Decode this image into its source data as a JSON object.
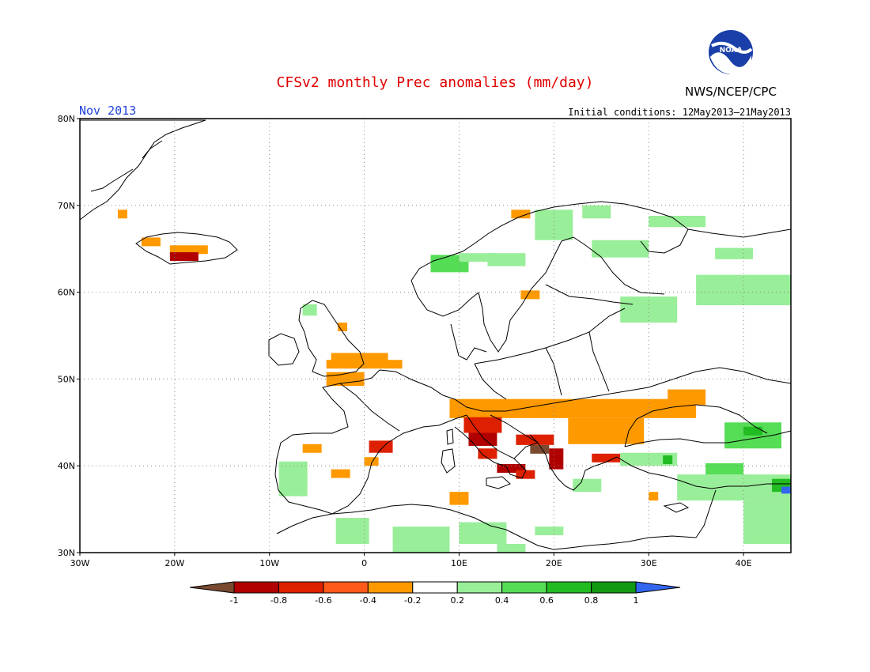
{
  "title": "CFSv2 monthly Prec anomalies (mm/day)",
  "month": "Nov 2013",
  "initial_conditions": "Initial conditions: 12May2013–21May2013",
  "organization": "NWS/NCEP/CPC",
  "logo_text": "NOAA",
  "colors": {
    "title": "#e00000",
    "month": "#2244dd",
    "bins": [
      "#7a4a30",
      "#b00000",
      "#dd2000",
      "#ff5a1a",
      "#ff9900",
      "#ffffff",
      "#99ee99",
      "#55dd55",
      "#22bb22",
      "#119911",
      "#3366ee"
    ]
  },
  "map": {
    "lon_range": [
      -30,
      45
    ],
    "lat_range": [
      30,
      80
    ],
    "lon_ticks": [
      {
        "value": -30,
        "label": "30W"
      },
      {
        "value": -20,
        "label": "20W"
      },
      {
        "value": -10,
        "label": "10W"
      },
      {
        "value": 0,
        "label": "0"
      },
      {
        "value": 10,
        "label": "10E"
      },
      {
        "value": 20,
        "label": "20E"
      },
      {
        "value": 30,
        "label": "30E"
      },
      {
        "value": 40,
        "label": "40E"
      }
    ],
    "lat_ticks": [
      {
        "value": 30,
        "label": "30N"
      },
      {
        "value": 40,
        "label": "40N"
      },
      {
        "value": 50,
        "label": "50N"
      },
      {
        "value": 60,
        "label": "60N"
      },
      {
        "value": 70,
        "label": "70N"
      },
      {
        "value": 80,
        "label": "80N"
      }
    ],
    "grid": true
  },
  "colorbar": {
    "ticks": [
      "-1",
      "-0.8",
      "-0.6",
      "-0.4",
      "-0.2",
      "0.2",
      "0.4",
      "0.6",
      "0.8",
      "1"
    ]
  },
  "anomalies": [
    {
      "lon": -26,
      "lat": 68.5,
      "w": 1,
      "h": 1,
      "bin": 4
    },
    {
      "lon": -23.5,
      "lat": 65.3,
      "w": 2,
      "h": 1,
      "bin": 4
    },
    {
      "lon": -20.5,
      "lat": 64.4,
      "w": 4,
      "h": 1,
      "bin": 4
    },
    {
      "lon": -20.5,
      "lat": 63.6,
      "w": 3,
      "h": 1,
      "bin": 1
    },
    {
      "lon": -4,
      "lat": 51.2,
      "w": 8,
      "h": 1,
      "bin": 4
    },
    {
      "lon": -3.5,
      "lat": 52.0,
      "w": 6,
      "h": 1,
      "bin": 4
    },
    {
      "lon": -4,
      "lat": 49.2,
      "w": 4,
      "h": 1.6,
      "bin": 4
    },
    {
      "lon": -2.8,
      "lat": 55.5,
      "w": 1,
      "h": 1,
      "bin": 4
    },
    {
      "lon": 15.5,
      "lat": 68.5,
      "w": 2,
      "h": 1,
      "bin": 4
    },
    {
      "lon": 16.5,
      "lat": 59.2,
      "w": 2,
      "h": 1,
      "bin": 4
    },
    {
      "lon": 9,
      "lat": 45.5,
      "w": 26,
      "h": 2.2,
      "bin": 4
    },
    {
      "lon": 21.5,
      "lat": 42.5,
      "w": 8,
      "h": 3,
      "bin": 4
    },
    {
      "lon": 32,
      "lat": 47,
      "w": 4,
      "h": 1.8,
      "bin": 4
    },
    {
      "lon": 10.5,
      "lat": 43.8,
      "w": 4,
      "h": 1.8,
      "bin": 2
    },
    {
      "lon": 11,
      "lat": 42.3,
      "w": 3,
      "h": 1.5,
      "bin": 1
    },
    {
      "lon": 12,
      "lat": 40.8,
      "w": 2,
      "h": 1.2,
      "bin": 2
    },
    {
      "lon": 14,
      "lat": 39.2,
      "w": 3,
      "h": 1,
      "bin": 1
    },
    {
      "lon": 16,
      "lat": 42.4,
      "w": 4,
      "h": 1.2,
      "bin": 2
    },
    {
      "lon": 17.5,
      "lat": 41.4,
      "w": 2,
      "h": 1,
      "bin": 0
    },
    {
      "lon": 19.5,
      "lat": 39.6,
      "w": 1.5,
      "h": 2.4,
      "bin": 1
    },
    {
      "lon": 24,
      "lat": 40.4,
      "w": 3,
      "h": 1,
      "bin": 2
    },
    {
      "lon": 16,
      "lat": 38.5,
      "w": 2,
      "h": 1,
      "bin": 2
    },
    {
      "lon": -6.5,
      "lat": 41.5,
      "w": 2,
      "h": 1,
      "bin": 4
    },
    {
      "lon": -3.5,
      "lat": 38.6,
      "w": 2,
      "h": 1,
      "bin": 4
    },
    {
      "lon": 0.5,
      "lat": 41.5,
      "w": 2.5,
      "h": 1.4,
      "bin": 2
    },
    {
      "lon": 0,
      "lat": 40,
      "w": 1.5,
      "h": 1,
      "bin": 4
    },
    {
      "lon": 9,
      "lat": 35.5,
      "w": 2,
      "h": 1.5,
      "bin": 4
    },
    {
      "lon": 30,
      "lat": 36,
      "w": 1,
      "h": 1,
      "bin": 4
    },
    {
      "lon": 7,
      "lat": 62.3,
      "w": 4,
      "h": 2,
      "bin": 7
    },
    {
      "lon": 10,
      "lat": 63.5,
      "w": 4,
      "h": 1,
      "bin": 6
    },
    {
      "lon": 18,
      "lat": 66,
      "w": 4,
      "h": 3.5,
      "bin": 6
    },
    {
      "lon": 23,
      "lat": 68.5,
      "w": 3,
      "h": 1.5,
      "bin": 6
    },
    {
      "lon": 24,
      "lat": 64,
      "w": 6,
      "h": 2,
      "bin": 6
    },
    {
      "lon": 13,
      "lat": 63,
      "w": 4,
      "h": 1.5,
      "bin": 6
    },
    {
      "lon": 27,
      "lat": 56.5,
      "w": 6,
      "h": 3,
      "bin": 6
    },
    {
      "lon": 35,
      "lat": 58.5,
      "w": 10,
      "h": 3.5,
      "bin": 6
    },
    {
      "lon": 37,
      "lat": 63.8,
      "w": 4,
      "h": 1.3,
      "bin": 6
    },
    {
      "lon": 30,
      "lat": 67.5,
      "w": 6,
      "h": 1.3,
      "bin": 6
    },
    {
      "lon": -6.5,
      "lat": 57.3,
      "w": 1.5,
      "h": 1.3,
      "bin": 6
    },
    {
      "lon": -9,
      "lat": 36.5,
      "w": 3,
      "h": 4,
      "bin": 6
    },
    {
      "lon": -3,
      "lat": 31,
      "w": 3.5,
      "h": 3,
      "bin": 6
    },
    {
      "lon": 3,
      "lat": 30,
      "w": 6,
      "h": 3,
      "bin": 6
    },
    {
      "lon": 10,
      "lat": 31,
      "w": 5,
      "h": 2.5,
      "bin": 6
    },
    {
      "lon": 14,
      "lat": 30,
      "w": 3,
      "h": 1,
      "bin": 6
    },
    {
      "lon": 18,
      "lat": 32,
      "w": 3,
      "h": 1,
      "bin": 6
    },
    {
      "lon": 22,
      "lat": 37,
      "w": 3,
      "h": 1.5,
      "bin": 6
    },
    {
      "lon": 27,
      "lat": 40,
      "w": 6,
      "h": 1.5,
      "bin": 6
    },
    {
      "lon": 33,
      "lat": 36,
      "w": 12,
      "h": 3,
      "bin": 6
    },
    {
      "lon": 40,
      "lat": 31,
      "w": 5,
      "h": 5,
      "bin": 6
    },
    {
      "lon": 38,
      "lat": 42,
      "w": 6,
      "h": 3,
      "bin": 7
    },
    {
      "lon": 40,
      "lat": 43.5,
      "w": 2,
      "h": 1,
      "bin": 8
    },
    {
      "lon": 43,
      "lat": 37,
      "w": 2,
      "h": 1.5,
      "bin": 8
    },
    {
      "lon": 31.5,
      "lat": 40.2,
      "w": 1,
      "h": 1,
      "bin": 8
    },
    {
      "lon": 36,
      "lat": 39,
      "w": 4,
      "h": 1.3,
      "bin": 7
    },
    {
      "lon": 44,
      "lat": 36.8,
      "w": 1,
      "h": 0.8,
      "bin": 10
    }
  ]
}
